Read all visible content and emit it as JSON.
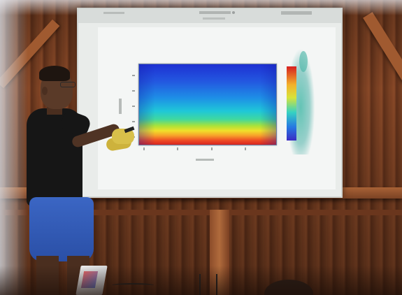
{
  "scene": {
    "type": "photo",
    "description_free": true
  },
  "colors": {
    "wall": "#7a3f22",
    "screen": "#e9ecea",
    "shirt": "#161616",
    "shorts": "#3b66c4",
    "heatmap_top": "#1d2fd2",
    "heatmap_bottom": "#d21e1e"
  },
  "icons": [
    "laptop-icon",
    "tripod-icon"
  ]
}
